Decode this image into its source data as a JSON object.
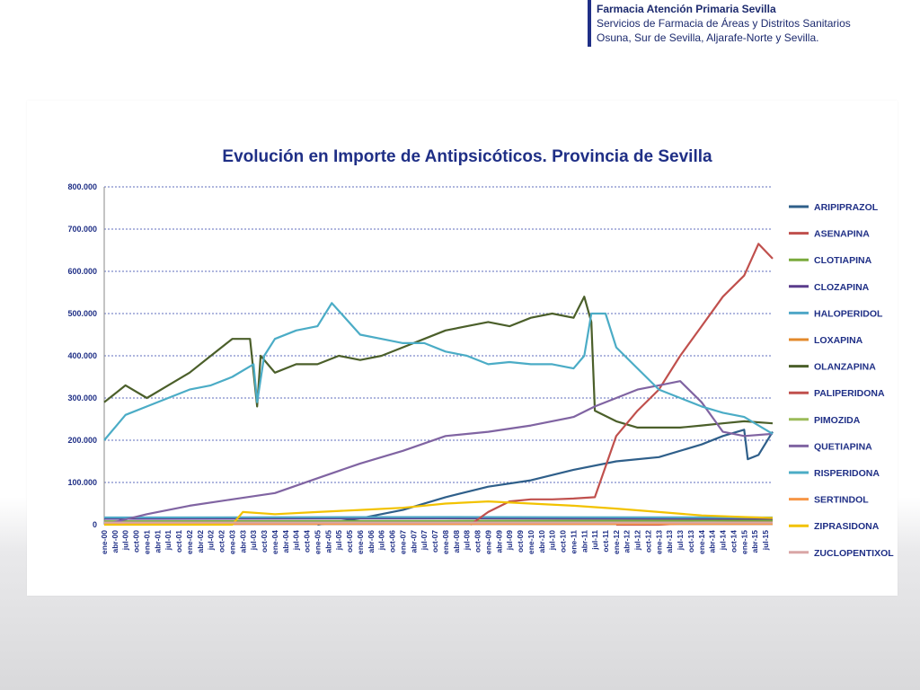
{
  "header": {
    "line1": "Farmacia Atención Primaria Sevilla",
    "line2": "Servicios de Farmacia de Áreas y Distritos Sanitarios",
    "line3": "Osuna, Sur de Sevilla, Aljarafe-Norte y Sevilla."
  },
  "chart_data": {
    "type": "line",
    "title": "Evolución en Importe de Antipsicóticos. Provincia de Sevilla",
    "xlabel": "",
    "ylabel": "",
    "ylim": [
      0,
      800000
    ],
    "yticks": [
      "0",
      "100.000",
      "200.000",
      "300.000",
      "400.000",
      "500.000",
      "600.000",
      "700.000",
      "800.000"
    ],
    "x_range": [
      "ene-00",
      "sep-15"
    ],
    "x_tick_labels": [
      "ene-00",
      "abr-00",
      "jul-00",
      "oct-00",
      "ene-01",
      "abr-01",
      "jul-01",
      "oct-01",
      "ene-02",
      "abr-02",
      "jul-02",
      "oct-02",
      "ene-03",
      "abr-03",
      "jul-03",
      "oct-03",
      "ene-04",
      "abr-04",
      "jul-04",
      "oct-04",
      "ene-05",
      "abr-05",
      "jul-05",
      "oct-05",
      "ene-06",
      "abr-06",
      "jul-06",
      "oct-06",
      "ene-07",
      "abr-07",
      "jul-07",
      "oct-07",
      "ene-08",
      "abr-08",
      "jul-08",
      "oct-08",
      "ene-09",
      "abr-09",
      "jul-09",
      "oct-09",
      "ene-10",
      "abr-10",
      "jul-10",
      "oct-10",
      "ene-11",
      "abr-11",
      "jul-11",
      "oct-11",
      "ene-12",
      "abr-12",
      "jul-12",
      "oct-12",
      "ene-13",
      "abr-13",
      "jul-13",
      "oct-13",
      "ene-14",
      "abr-14",
      "jul-14",
      "oct-14",
      "ene-15",
      "abr-15",
      "jul-15"
    ],
    "grid": true,
    "legend_position": "right",
    "series": [
      {
        "name": "ARIPIPRAZOL",
        "color": "#2f5f8a",
        "points": [
          [
            "ene-05",
            0
          ],
          [
            "ene-06",
            15000
          ],
          [
            "ene-07",
            35000
          ],
          [
            "ene-08",
            65000
          ],
          [
            "ene-09",
            90000
          ],
          [
            "ene-10",
            105000
          ],
          [
            "ene-11",
            130000
          ],
          [
            "ene-12",
            150000
          ],
          [
            "ene-13",
            160000
          ],
          [
            "ene-14",
            190000
          ],
          [
            "jul-14",
            210000
          ],
          [
            "ene-15",
            225000
          ],
          [
            "feb-15",
            155000
          ],
          [
            "may-15",
            165000
          ],
          [
            "sep-15",
            220000
          ]
        ]
      },
      {
        "name": "ASENAPINA",
        "color": "#c0504d",
        "points": [
          [
            "ene-12",
            0
          ],
          [
            "ene-13",
            0
          ],
          [
            "ene-14",
            5000
          ],
          [
            "sep-15",
            8000
          ]
        ]
      },
      {
        "name": "CLOTIAPINA",
        "color": "#7aaa3c",
        "points": [
          [
            "ene-00",
            8000
          ],
          [
            "ene-08",
            9000
          ],
          [
            "ene-15",
            10000
          ],
          [
            "sep-15",
            10000
          ]
        ]
      },
      {
        "name": "CLOZAPINA",
        "color": "#5a3c8c",
        "points": [
          [
            "ene-00",
            14000
          ],
          [
            "ene-08",
            15000
          ],
          [
            "ene-15",
            14000
          ],
          [
            "sep-15",
            14000
          ]
        ]
      },
      {
        "name": "HALOPERIDOL",
        "color": "#4fa7c7",
        "points": [
          [
            "ene-00",
            17000
          ],
          [
            "ene-08",
            18000
          ],
          [
            "ene-15",
            17000
          ],
          [
            "sep-15",
            17000
          ]
        ]
      },
      {
        "name": "LOXAPINA",
        "color": "#e3892b",
        "points": [
          [
            "ene-00",
            4000
          ],
          [
            "ene-08",
            4000
          ],
          [
            "ene-15",
            4000
          ],
          [
            "sep-15",
            4000
          ]
        ]
      },
      {
        "name": "OLANZAPINA",
        "color": "#4b5f2a",
        "points": [
          [
            "ene-00",
            290000
          ],
          [
            "jul-00",
            330000
          ],
          [
            "ene-01",
            300000
          ],
          [
            "jul-01",
            330000
          ],
          [
            "ene-02",
            360000
          ],
          [
            "jul-02",
            400000
          ],
          [
            "ene-03",
            440000
          ],
          [
            "jun-03",
            440000
          ],
          [
            "ago-03",
            280000
          ],
          [
            "sep-03",
            400000
          ],
          [
            "ene-04",
            360000
          ],
          [
            "jul-04",
            380000
          ],
          [
            "ene-05",
            380000
          ],
          [
            "jul-05",
            400000
          ],
          [
            "ene-06",
            390000
          ],
          [
            "jul-06",
            400000
          ],
          [
            "ene-07",
            420000
          ],
          [
            "jul-07",
            440000
          ],
          [
            "ene-08",
            460000
          ],
          [
            "jul-08",
            470000
          ],
          [
            "ene-09",
            480000
          ],
          [
            "jul-09",
            470000
          ],
          [
            "ene-10",
            490000
          ],
          [
            "jul-10",
            500000
          ],
          [
            "ene-11",
            490000
          ],
          [
            "abr-11",
            540000
          ],
          [
            "jun-11",
            480000
          ],
          [
            "jul-11",
            270000
          ],
          [
            "ene-12",
            245000
          ],
          [
            "jul-12",
            230000
          ],
          [
            "ene-13",
            230000
          ],
          [
            "jul-13",
            230000
          ],
          [
            "ene-14",
            235000
          ],
          [
            "jul-14",
            240000
          ],
          [
            "ene-15",
            245000
          ],
          [
            "sep-15",
            240000
          ]
        ]
      },
      {
        "name": "PALIPERIDONA",
        "color": "#c0504d",
        "points": [
          [
            "ago-08",
            0
          ],
          [
            "ene-09",
            30000
          ],
          [
            "jul-09",
            55000
          ],
          [
            "ene-10",
            60000
          ],
          [
            "jul-10",
            60000
          ],
          [
            "ene-11",
            62000
          ],
          [
            "jul-11",
            65000
          ],
          [
            "ene-12",
            210000
          ],
          [
            "jul-12",
            270000
          ],
          [
            "ene-13",
            320000
          ],
          [
            "jul-13",
            400000
          ],
          [
            "ene-14",
            470000
          ],
          [
            "jul-14",
            540000
          ],
          [
            "ene-15",
            590000
          ],
          [
            "may-15",
            665000
          ],
          [
            "sep-15",
            630000
          ]
        ]
      },
      {
        "name": "PIMOZIDA",
        "color": "#9bbb59",
        "points": [
          [
            "ene-00",
            3000
          ],
          [
            "sep-15",
            3000
          ]
        ]
      },
      {
        "name": "QUETIAPINA",
        "color": "#8064a2",
        "points": [
          [
            "ene-00",
            0
          ],
          [
            "ene-01",
            25000
          ],
          [
            "ene-02",
            45000
          ],
          [
            "ene-03",
            60000
          ],
          [
            "ene-04",
            75000
          ],
          [
            "ene-05",
            110000
          ],
          [
            "ene-06",
            145000
          ],
          [
            "ene-07",
            175000
          ],
          [
            "ene-08",
            210000
          ],
          [
            "ene-09",
            220000
          ],
          [
            "ene-10",
            235000
          ],
          [
            "ene-11",
            255000
          ],
          [
            "jul-11",
            280000
          ],
          [
            "ene-12",
            300000
          ],
          [
            "jul-12",
            320000
          ],
          [
            "ene-13",
            330000
          ],
          [
            "jul-13",
            340000
          ],
          [
            "ene-14",
            290000
          ],
          [
            "jul-14",
            220000
          ],
          [
            "ene-15",
            210000
          ],
          [
            "sep-15",
            215000
          ]
        ]
      },
      {
        "name": "RISPERIDONA",
        "color": "#4bacc6",
        "points": [
          [
            "ene-00",
            200000
          ],
          [
            "jul-00",
            260000
          ],
          [
            "ene-01",
            280000
          ],
          [
            "jul-01",
            300000
          ],
          [
            "ene-02",
            320000
          ],
          [
            "jul-02",
            330000
          ],
          [
            "ene-03",
            350000
          ],
          [
            "jul-03",
            380000
          ],
          [
            "ago-03",
            290000
          ],
          [
            "oct-03",
            400000
          ],
          [
            "ene-04",
            440000
          ],
          [
            "jul-04",
            460000
          ],
          [
            "ene-05",
            470000
          ],
          [
            "may-05",
            525000
          ],
          [
            "ene-06",
            450000
          ],
          [
            "jul-06",
            440000
          ],
          [
            "ene-07",
            430000
          ],
          [
            "jul-07",
            430000
          ],
          [
            "ene-08",
            410000
          ],
          [
            "jul-08",
            400000
          ],
          [
            "ene-09",
            380000
          ],
          [
            "jul-09",
            385000
          ],
          [
            "ene-10",
            380000
          ],
          [
            "jul-10",
            380000
          ],
          [
            "ene-11",
            370000
          ],
          [
            "abr-11",
            400000
          ],
          [
            "jun-11",
            500000
          ],
          [
            "oct-11",
            500000
          ],
          [
            "ene-12",
            420000
          ],
          [
            "jul-12",
            370000
          ],
          [
            "ene-13",
            320000
          ],
          [
            "jul-13",
            300000
          ],
          [
            "ene-14",
            280000
          ],
          [
            "jul-14",
            265000
          ],
          [
            "ene-15",
            255000
          ],
          [
            "sep-15",
            215000
          ]
        ]
      },
      {
        "name": "SERTINDOL",
        "color": "#f79646",
        "points": [
          [
            "ene-00",
            2000
          ],
          [
            "sep-15",
            2000
          ]
        ]
      },
      {
        "name": "ZIPRASIDONA",
        "color": "#f2c200",
        "points": [
          [
            "ene-00",
            0
          ],
          [
            "ene-03",
            0
          ],
          [
            "abr-03",
            30000
          ],
          [
            "ene-04",
            25000
          ],
          [
            "ene-05",
            30000
          ],
          [
            "ene-06",
            35000
          ],
          [
            "ene-07",
            40000
          ],
          [
            "ene-08",
            50000
          ],
          [
            "ene-09",
            55000
          ],
          [
            "ene-10",
            50000
          ],
          [
            "ene-11",
            45000
          ],
          [
            "ene-12",
            38000
          ],
          [
            "ene-13",
            30000
          ],
          [
            "ene-14",
            22000
          ],
          [
            "ene-15",
            18000
          ],
          [
            "sep-15",
            16000
          ]
        ]
      },
      {
        "name": "ZUCLOPENTIXOL",
        "color": "#d9a6a6",
        "points": [
          [
            "ene-00",
            5000
          ],
          [
            "sep-15",
            5000
          ]
        ]
      }
    ]
  }
}
